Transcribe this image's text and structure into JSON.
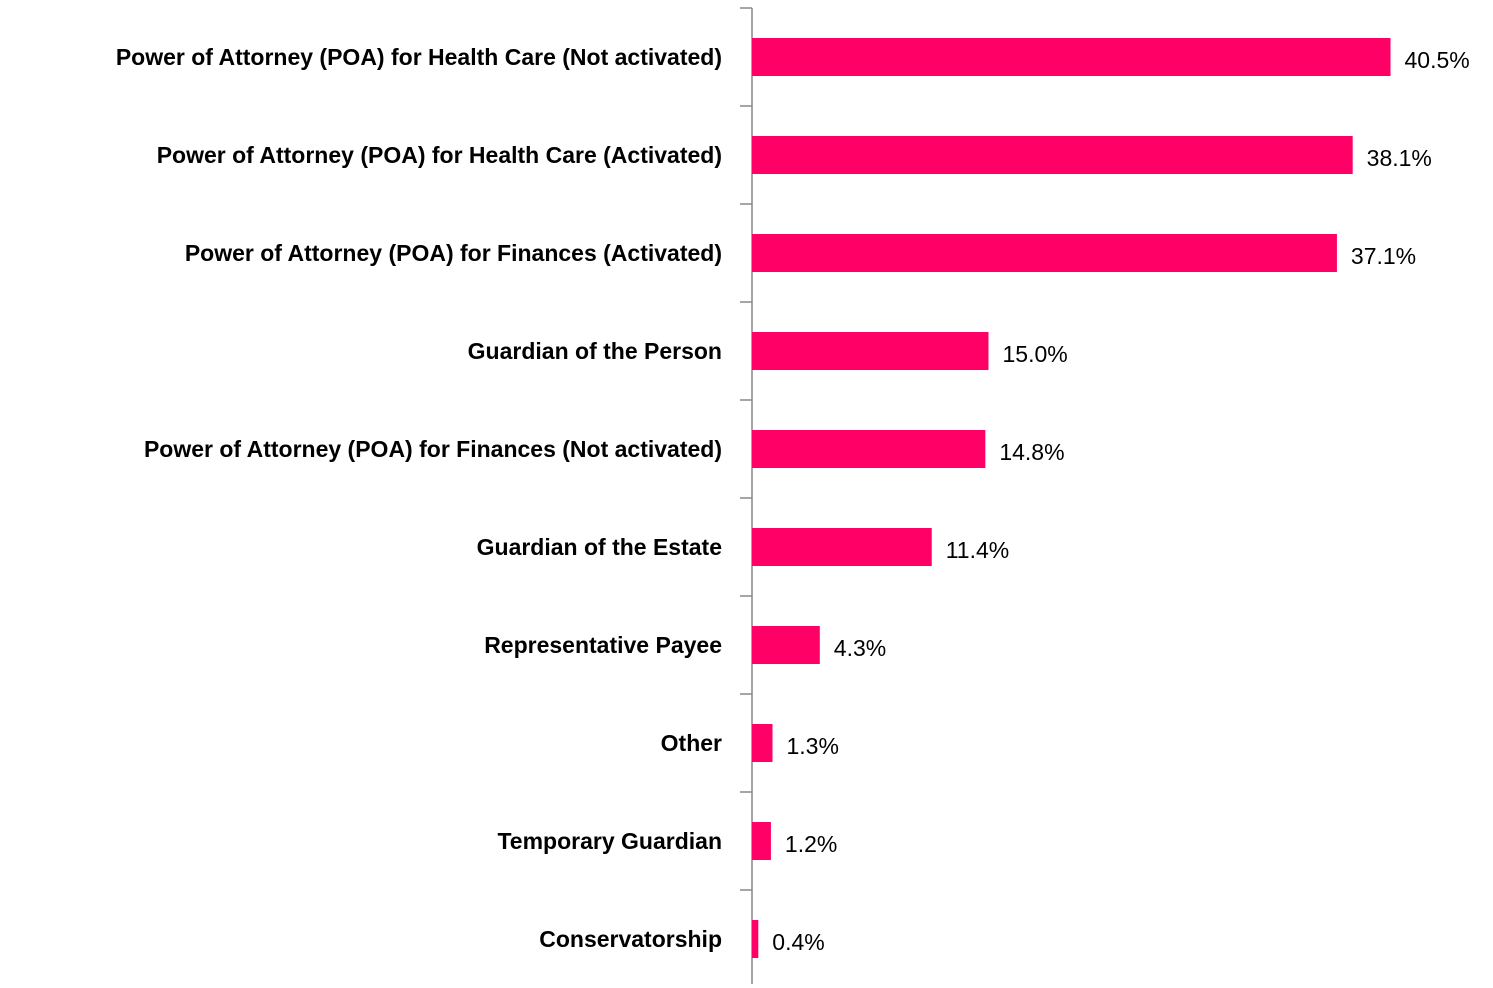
{
  "chart_data": {
    "type": "bar",
    "orientation": "horizontal",
    "categories": [
      "Power of Attorney (POA) for Health Care (Not activated)",
      "Power of Attorney (POA) for Health Care (Activated)",
      "Power of Attorney (POA) for Finances (Activated)",
      "Guardian of the Person",
      "Power of Attorney (POA) for Finances (Not activated)",
      "Guardian of the Estate",
      "Representative Payee",
      "Other",
      "Temporary Guardian",
      "Conservatorship"
    ],
    "values": [
      40.5,
      38.1,
      37.1,
      15.0,
      14.8,
      11.4,
      4.3,
      1.3,
      1.2,
      0.4
    ],
    "value_labels": [
      "40.5%",
      "38.1%",
      "37.1%",
      "15.0%",
      "14.8%",
      "11.4%",
      "4.3%",
      "1.3%",
      "1.2%",
      "0.4%"
    ],
    "color": "#ff0066",
    "xlim": [
      0,
      47
    ]
  }
}
